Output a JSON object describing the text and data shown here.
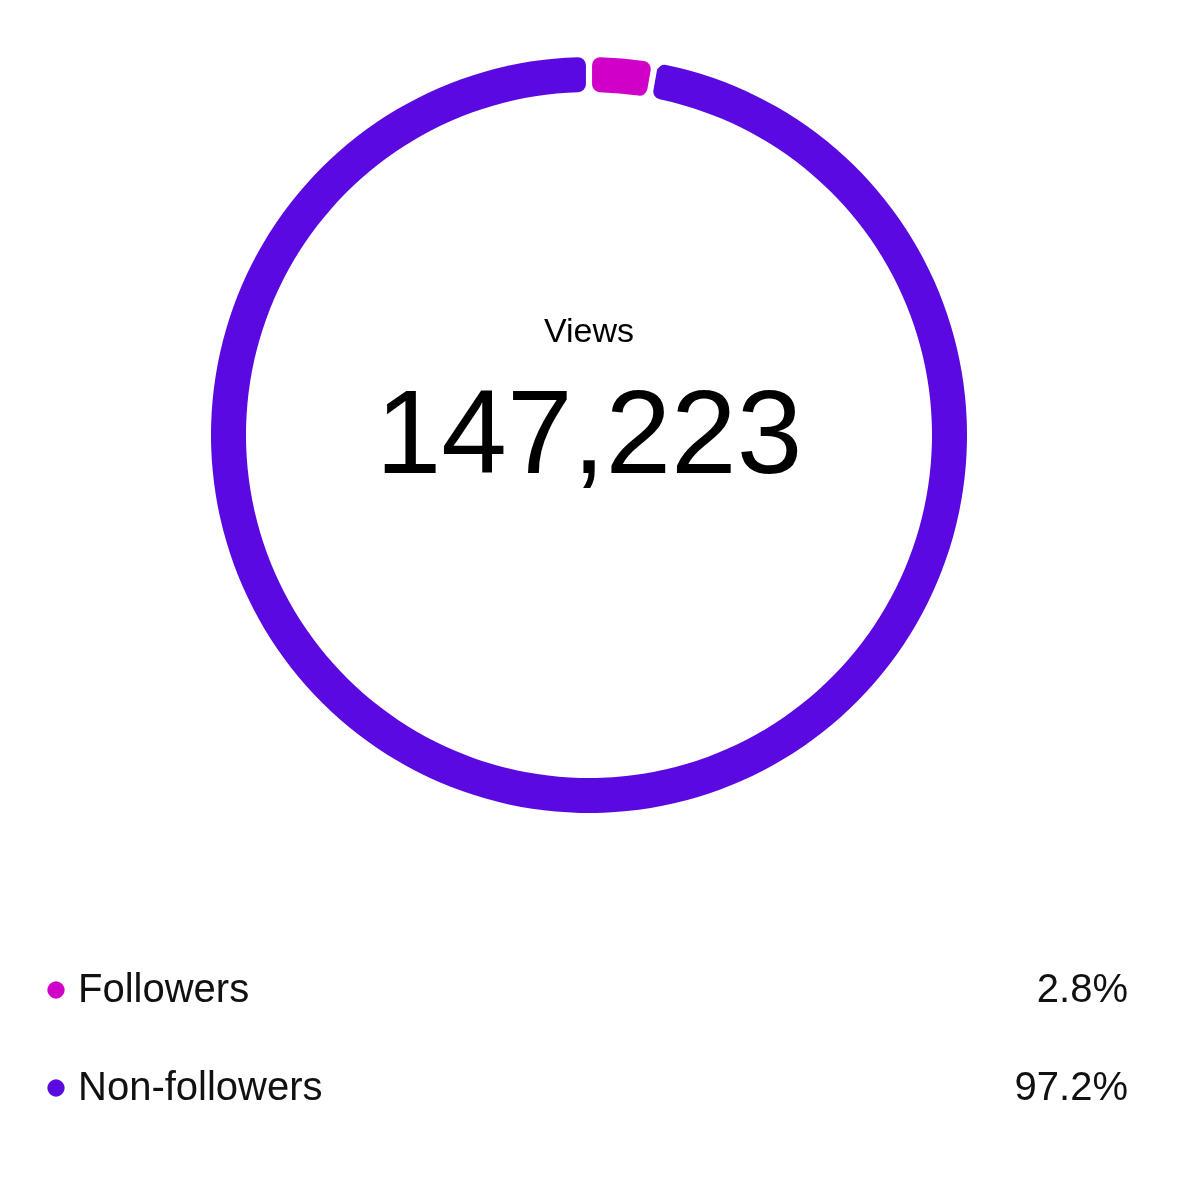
{
  "chart_data": {
    "type": "donut",
    "categories": [
      "Followers",
      "Non-followers"
    ],
    "values": [
      2.8,
      97.2
    ],
    "colors": [
      "#d000c8",
      "#5a0ae0"
    ],
    "value_labels": [
      "2.8%",
      "97.2%"
    ],
    "annotations": [
      "Views",
      "147,223"
    ],
    "legend": "bottom"
  }
}
